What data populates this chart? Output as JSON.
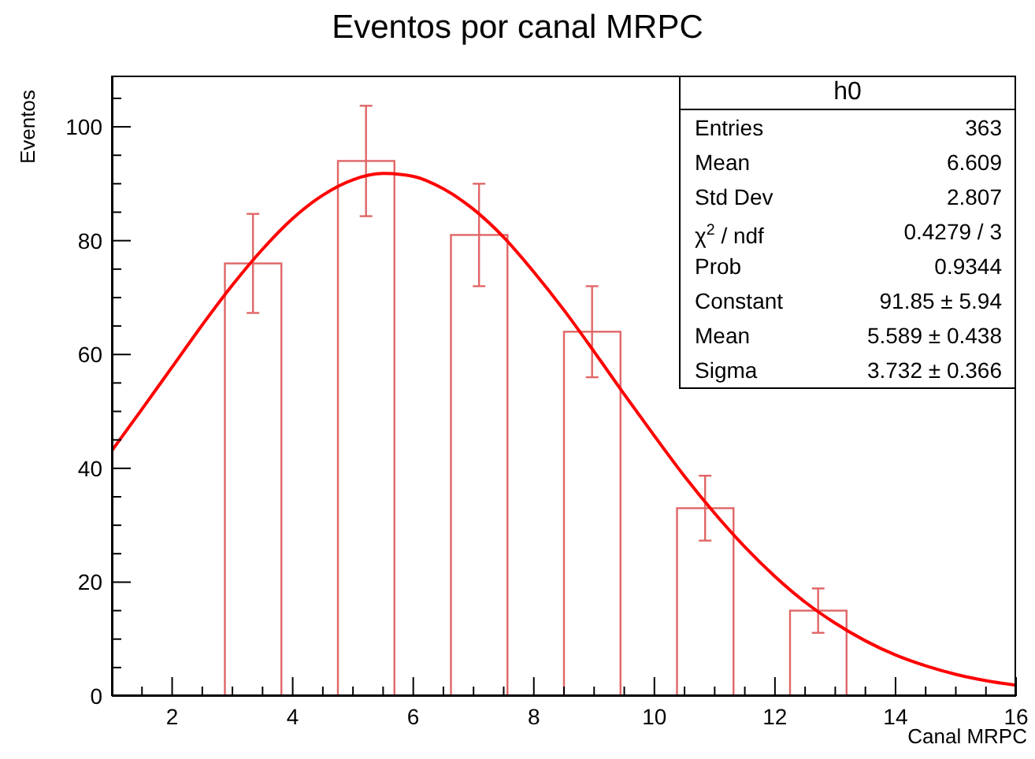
{
  "chart_data": {
    "type": "histogram",
    "title": "Eventos por canal MRPC",
    "xlabel": "Canal MRPC",
    "ylabel": "Eventos",
    "series": [
      {
        "color": "#e06666",
        "bins": [
          1,
          1.9375,
          2.875,
          3.8125,
          4.75,
          5.6875,
          6.625,
          7.5625,
          8.5,
          9.4375,
          10.375,
          11.3125,
          12.25,
          13.1875,
          14.125,
          15.0625,
          16
        ],
        "values": [
          0,
          0,
          76,
          0,
          94,
          0,
          81,
          0,
          64,
          0,
          33,
          0,
          15,
          0,
          0,
          0
        ],
        "errors": [
          null,
          null,
          8.7,
          null,
          9.7,
          null,
          9,
          null,
          8,
          null,
          5.7,
          null,
          3.9,
          null,
          null,
          null
        ]
      },
      {
        "type": "line",
        "color": "#ff0000",
        "x": [
          1,
          1.5,
          2,
          2.5,
          3,
          3.5,
          4,
          4.5,
          5,
          5.5,
          6,
          6.5,
          7,
          7.5,
          8,
          8.5,
          9,
          9.5,
          10,
          10.5,
          11,
          11.5,
          12,
          12.5,
          13,
          13.5,
          14,
          14.5,
          15,
          15.5,
          16
        ],
        "values": [
          43.1,
          50.4,
          57.8,
          65.2,
          72.2,
          78.5,
          83.9,
          88,
          90.7,
          91.8,
          91.3,
          89.1,
          85.5,
          80.6,
          74.5,
          67.8,
          60.5,
          53,
          45.7,
          38.6,
          32.1,
          26.2,
          21,
          16.5,
          12.8,
          9.7,
          7.2,
          5.3,
          3.8,
          2.7,
          1.9
        ]
      }
    ],
    "xlim": [
      1,
      16
    ],
    "ylim": [
      0,
      109
    ],
    "xticks": [
      {
        "value": 1.5,
        "label": null
      },
      2,
      {
        "value": 2.5,
        "label": null
      },
      {
        "value": 3,
        "label": null
      },
      {
        "value": 3.5,
        "label": null
      },
      4,
      {
        "value": 4.5,
        "label": null
      },
      {
        "value": 5,
        "label": null
      },
      {
        "value": 5.5,
        "label": null
      },
      6,
      {
        "value": 6.5,
        "label": null
      },
      {
        "value": 7,
        "label": null
      },
      {
        "value": 7.5,
        "label": null
      },
      8,
      {
        "value": 8.5,
        "label": null
      },
      {
        "value": 9,
        "label": null
      },
      {
        "value": 9.5,
        "label": null
      },
      10,
      {
        "value": 10.5,
        "label": null
      },
      {
        "value": 11,
        "label": null
      },
      {
        "value": 11.5,
        "label": null
      },
      12,
      {
        "value": 12.5,
        "label": null
      },
      {
        "value": 13,
        "label": null
      },
      {
        "value": 13.5,
        "label": null
      },
      14,
      {
        "value": 14.5,
        "label": null
      },
      {
        "value": 15,
        "label": null
      },
      {
        "value": 15.5,
        "label": null
      },
      16
    ],
    "yticks": [
      0,
      {
        "value": 5,
        "label": null
      },
      {
        "value": 10,
        "label": null
      },
      {
        "value": 15,
        "label": null
      },
      20,
      {
        "value": 25,
        "label": null
      },
      {
        "value": 30,
        "label": null
      },
      {
        "value": 35,
        "label": null
      },
      40,
      {
        "value": 45,
        "label": null
      },
      {
        "value": 50,
        "label": null
      },
      {
        "value": 55,
        "label": null
      },
      60,
      {
        "value": 65,
        "label": null
      },
      {
        "value": 70,
        "label": null
      },
      {
        "value": 75,
        "label": null
      },
      80,
      {
        "value": 85,
        "label": null
      },
      {
        "value": 90,
        "label": null
      },
      {
        "value": 95,
        "label": null
      },
      100,
      {
        "value": 105,
        "label": null
      }
    ],
    "grid": false,
    "legend": false,
    "annotations": [
      "h0",
      "Entries",
      "363",
      "Mean",
      "6.609",
      "Std Dev",
      "2.807",
      "χ$^{2}$ / ndf",
      "0.4279 / 3",
      "Prob",
      "0.9344",
      "Constant",
      "91.85 ± 5.94",
      "Mean",
      "5.589 ± 0.438",
      "Sigma",
      "3.732 ± 0.366"
    ]
  }
}
